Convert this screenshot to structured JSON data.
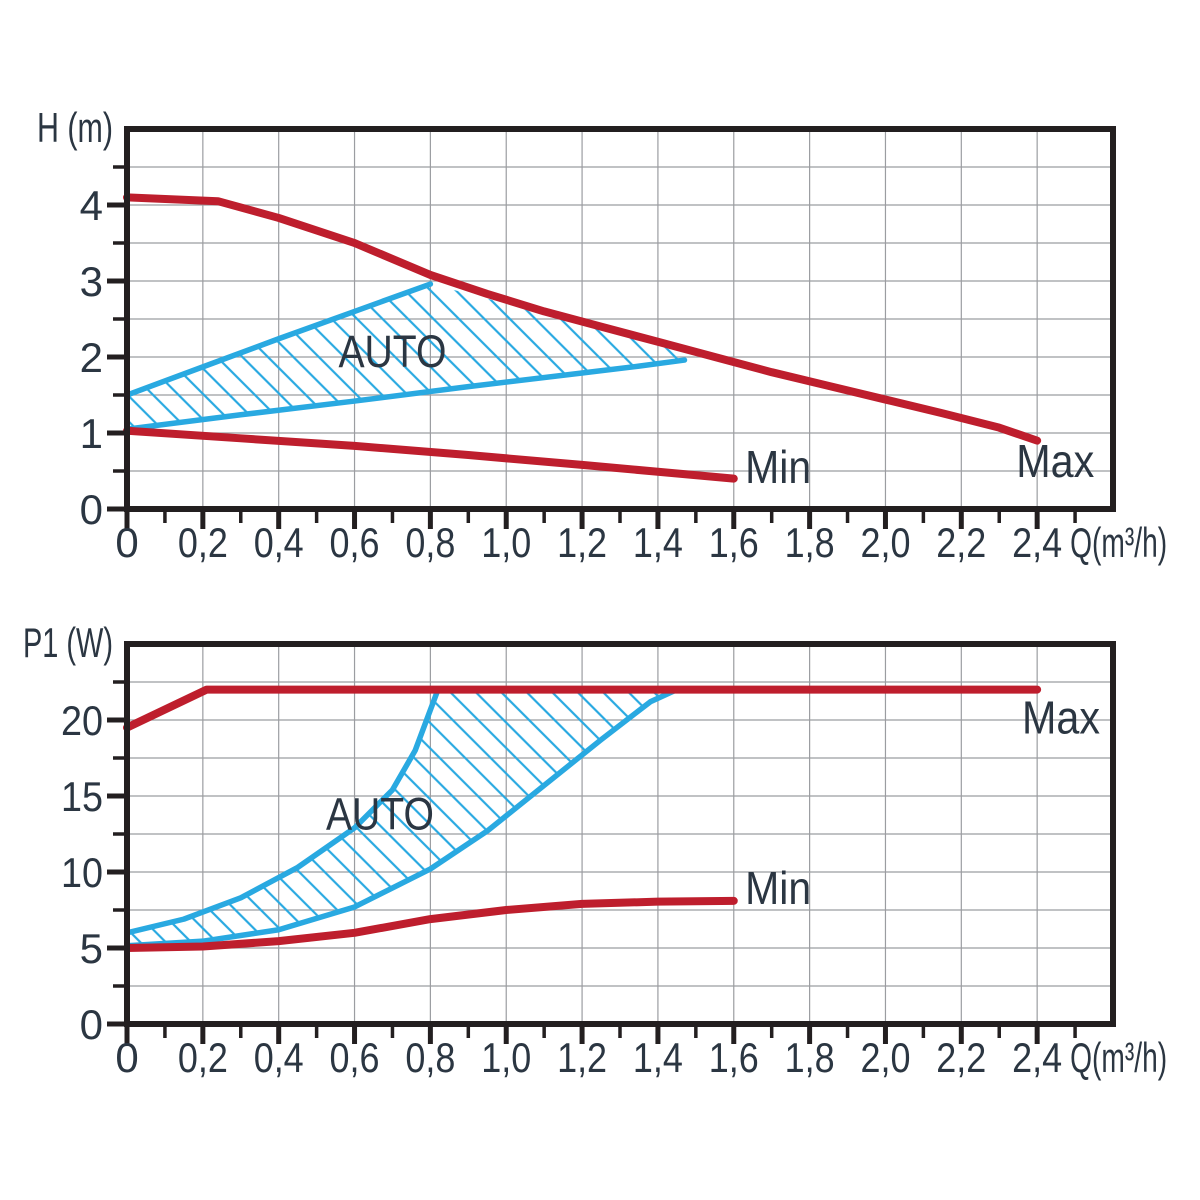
{
  "figure": {
    "background": "#ffffff",
    "description_labels": {
      "head_axis": "H (m)",
      "power_axis": "P1 (W)",
      "flow_axis": "Q(m³/h)"
    }
  },
  "colors": {
    "red": "#be1e2d",
    "blue": "#29a9e1",
    "grid": "#9b9da1",
    "axis": "#231f20",
    "text": "#2b3642"
  },
  "chart_data": [
    {
      "name": "h-q-chart",
      "type": "line",
      "ylabel": "H (m)",
      "ylabel_tl": 76,
      "xlabel": "Q(m³/h)",
      "xlabel_tl": 97,
      "xlim": [
        0,
        2.6
      ],
      "ylim": [
        0,
        5
      ],
      "grid": true,
      "x_major_ticks": [
        0,
        0.2,
        0.4,
        0.6,
        0.8,
        1.0,
        1.2,
        1.4,
        1.6,
        1.8,
        2.0,
        2.2,
        2.4
      ],
      "x_tick_labels": [
        "0",
        "0,2",
        "0,4",
        "0,6",
        "0,8",
        "1,0",
        "1,2",
        "1,4",
        "1,6",
        "1,8",
        "2,0",
        "2,2",
        "2,4"
      ],
      "x_minor_step": 0.1,
      "x_grid_step": 0.2,
      "y_major_ticks": [
        0,
        1,
        2,
        3,
        4
      ],
      "y_tick_labels": [
        "0",
        "1",
        "2",
        "3",
        "4"
      ],
      "y_minor_step": 0.5,
      "y_grid_step": 0.5,
      "series": [
        {
          "name": "max",
          "legend": "Max",
          "color": "red",
          "width": 8,
          "points": [
            [
              0,
              4.1
            ],
            [
              0.24,
              4.05
            ],
            [
              0.4,
              3.83
            ],
            [
              0.6,
              3.5
            ],
            [
              0.8,
              3.08
            ],
            [
              0.95,
              2.83
            ],
            [
              1.1,
              2.6
            ],
            [
              1.25,
              2.4
            ],
            [
              1.4,
              2.2
            ],
            [
              1.55,
              2.0
            ],
            [
              1.7,
              1.8
            ],
            [
              1.85,
              1.62
            ],
            [
              2.0,
              1.44
            ],
            [
              2.15,
              1.26
            ],
            [
              2.3,
              1.07
            ],
            [
              2.4,
              0.9
            ]
          ]
        },
        {
          "name": "min",
          "legend": "Min",
          "color": "red",
          "width": 8,
          "points": [
            [
              0,
              1.03
            ],
            [
              0.3,
              0.93
            ],
            [
              0.6,
              0.83
            ],
            [
              0.9,
              0.71
            ],
            [
              1.2,
              0.58
            ],
            [
              1.4,
              0.49
            ],
            [
              1.6,
              0.4
            ]
          ]
        },
        {
          "name": "auto-upper",
          "legend": "AUTO upper limit",
          "color": "blue",
          "width": 5.5,
          "points": [
            [
              0,
              1.5
            ],
            [
              0.2,
              1.87
            ],
            [
              0.4,
              2.24
            ],
            [
              0.6,
              2.6
            ],
            [
              0.8,
              2.96
            ]
          ]
        },
        {
          "name": "auto-lower",
          "legend": "AUTO lower limit",
          "color": "blue",
          "width": 5.5,
          "points": [
            [
              0,
              1.05
            ],
            [
              0.3,
              1.24
            ],
            [
              0.6,
              1.42
            ],
            [
              0.9,
              1.61
            ],
            [
              1.2,
              1.79
            ],
            [
              1.35,
              1.88
            ],
            [
              1.47,
              1.96
            ]
          ]
        }
      ],
      "auto_region": {
        "points": [
          [
            0,
            1.5
          ],
          [
            0.2,
            1.87
          ],
          [
            0.4,
            2.24
          ],
          [
            0.6,
            2.6
          ],
          [
            0.8,
            2.96
          ],
          [
            0.95,
            2.77
          ],
          [
            1.1,
            2.55
          ],
          [
            1.25,
            2.35
          ],
          [
            1.4,
            2.16
          ],
          [
            1.47,
            2.03
          ],
          [
            1.47,
            1.96
          ],
          [
            1.35,
            1.88
          ],
          [
            1.2,
            1.79
          ],
          [
            0.9,
            1.61
          ],
          [
            0.6,
            1.42
          ],
          [
            0.3,
            1.24
          ],
          [
            0,
            1.05
          ]
        ]
      },
      "annotations": [
        {
          "text": "AUTO",
          "x": 0.7,
          "y": 1.87,
          "anchor": "middle",
          "size": 45,
          "tl": 108
        },
        {
          "text": "Min",
          "x": 1.63,
          "y": 0.34,
          "anchor": "start",
          "size": 46,
          "tl": 66
        },
        {
          "text": "Max",
          "x": 2.345,
          "y": 0.42,
          "anchor": "start",
          "size": 46,
          "tl": 78
        }
      ]
    },
    {
      "name": "p1-q-chart",
      "type": "line",
      "ylabel": "P1 (W)",
      "ylabel_tl": 90,
      "xlabel": "Q(m³/h)",
      "xlabel_tl": 97,
      "xlim": [
        0,
        2.6
      ],
      "ylim": [
        0,
        25
      ],
      "grid": true,
      "x_major_ticks": [
        0,
        0.2,
        0.4,
        0.6,
        0.8,
        1.0,
        1.2,
        1.4,
        1.6,
        1.8,
        2.0,
        2.2,
        2.4
      ],
      "x_tick_labels": [
        "0",
        "0,2",
        "0,4",
        "0,6",
        "0,8",
        "1,0",
        "1,2",
        "1,4",
        "1,6",
        "1,8",
        "2,0",
        "2,2",
        "2,4"
      ],
      "x_minor_step": 0.1,
      "x_grid_step": 0.2,
      "y_major_ticks": [
        0,
        5,
        10,
        15,
        20
      ],
      "y_tick_labels": [
        "0",
        "5",
        "10",
        "15",
        "20"
      ],
      "y_minor_step": 2.5,
      "y_grid_step": 2.5,
      "series": [
        {
          "name": "max",
          "legend": "Max",
          "color": "red",
          "width": 8,
          "points": [
            [
              0,
              19.5
            ],
            [
              0.21,
              22
            ],
            [
              2.4,
              22
            ]
          ]
        },
        {
          "name": "min",
          "legend": "Min",
          "color": "red",
          "width": 8,
          "points": [
            [
              0,
              5.0
            ],
            [
              0.2,
              5.1
            ],
            [
              0.4,
              5.45
            ],
            [
              0.6,
              6.0
            ],
            [
              0.8,
              6.9
            ],
            [
              1.0,
              7.5
            ],
            [
              1.2,
              7.9
            ],
            [
              1.4,
              8.05
            ],
            [
              1.6,
              8.1
            ]
          ]
        },
        {
          "name": "auto-upper",
          "legend": "AUTO upper limit",
          "color": "blue",
          "width": 5.5,
          "points": [
            [
              0,
              6.0
            ],
            [
              0.15,
              6.9
            ],
            [
              0.3,
              8.3
            ],
            [
              0.45,
              10.3
            ],
            [
              0.6,
              12.9
            ],
            [
              0.7,
              15.4
            ],
            [
              0.76,
              18.0
            ],
            [
              0.82,
              22
            ]
          ]
        },
        {
          "name": "auto-lower",
          "legend": "AUTO lower limit",
          "color": "blue",
          "width": 5.5,
          "points": [
            [
              0,
              5.15
            ],
            [
              0.2,
              5.45
            ],
            [
              0.4,
              6.2
            ],
            [
              0.6,
              7.7
            ],
            [
              0.8,
              10.2
            ],
            [
              0.95,
              12.7
            ],
            [
              1.1,
              15.7
            ],
            [
              1.25,
              18.7
            ],
            [
              1.38,
              21.2
            ],
            [
              1.45,
              22
            ]
          ]
        }
      ],
      "auto_region": {
        "points": [
          [
            0,
            6.0
          ],
          [
            0.15,
            6.9
          ],
          [
            0.3,
            8.3
          ],
          [
            0.45,
            10.3
          ],
          [
            0.6,
            12.9
          ],
          [
            0.7,
            15.4
          ],
          [
            0.76,
            18.0
          ],
          [
            0.82,
            22
          ],
          [
            1.45,
            22
          ],
          [
            1.38,
            21.2
          ],
          [
            1.25,
            18.7
          ],
          [
            1.1,
            15.7
          ],
          [
            0.95,
            12.7
          ],
          [
            0.8,
            10.2
          ],
          [
            0.6,
            7.7
          ],
          [
            0.4,
            6.2
          ],
          [
            0.2,
            5.45
          ],
          [
            0,
            5.15
          ]
        ]
      },
      "annotations": [
        {
          "text": "AUTO",
          "x": 0.667,
          "y": 12.8,
          "anchor": "middle",
          "size": 45,
          "tl": 108
        },
        {
          "text": "Min",
          "x": 1.63,
          "y": 7.9,
          "anchor": "start",
          "size": 46,
          "tl": 66
        },
        {
          "text": "Max",
          "x": 2.36,
          "y": 19.1,
          "anchor": "start",
          "size": 46,
          "tl": 78
        }
      ]
    }
  ]
}
